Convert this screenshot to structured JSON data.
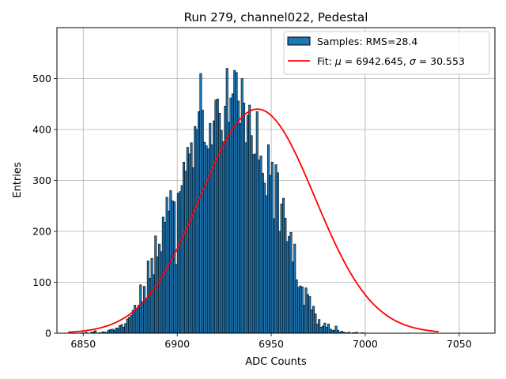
{
  "chart_data": {
    "type": "bar",
    "title": "Run 279, channel022, Pedestal",
    "xlabel": "ADC Counts",
    "ylabel": "Entries",
    "xlim": [
      6836,
      7069
    ],
    "ylim": [
      0,
      600
    ],
    "xticks": [
      6850,
      6900,
      6950,
      7000,
      7050
    ],
    "yticks": [
      0,
      100,
      200,
      300,
      400,
      500
    ],
    "grid": true,
    "legend_position": "top-right",
    "colors": {
      "bars": "#1f77b4",
      "bar_edge": "#000000",
      "fit": "#ff0000",
      "grid": "#b0b0b0"
    },
    "histogram": {
      "name": "Samples: RMS=28.4",
      "bin_start": 6844,
      "bin_width": 1,
      "counts": [
        0,
        0,
        0,
        0,
        0,
        1,
        0,
        2,
        0,
        0,
        2,
        3,
        5,
        0,
        1,
        1,
        3,
        2,
        2,
        6,
        7,
        8,
        6,
        10,
        10,
        15,
        17,
        12,
        19,
        28,
        31,
        35,
        45,
        55,
        48,
        55,
        95,
        62,
        92,
        68,
        142,
        108,
        147,
        115,
        191,
        150,
        175,
        160,
        228,
        218,
        267,
        240,
        280,
        260,
        258,
        135,
        275,
        278,
        290,
        336,
        318,
        365,
        352,
        374,
        325,
        406,
        400,
        435,
        510,
        438,
        375,
        368,
        362,
        412,
        370,
        417,
        458,
        460,
        432,
        398,
        376,
        446,
        520,
        414,
        462,
        470,
        516,
        512,
        456,
        412,
        500,
        452,
        374,
        428,
        448,
        388,
        351,
        352,
        435,
        340,
        348,
        314,
        295,
        270,
        370,
        310,
        336,
        225,
        331,
        315,
        200,
        254,
        265,
        226,
        180,
        190,
        198,
        140,
        175,
        105,
        90,
        93,
        91,
        55,
        89,
        76,
        72,
        46,
        53,
        38,
        18,
        27,
        12,
        14,
        20,
        12,
        18,
        8,
        6,
        6,
        14,
        6,
        2,
        4,
        2,
        1,
        1,
        2,
        0,
        1,
        1,
        2,
        0,
        0,
        1,
        0,
        0,
        0,
        0,
        0,
        0,
        0,
        0,
        0,
        0,
        0,
        0,
        0,
        0,
        0,
        0,
        0,
        0,
        0,
        0,
        0,
        0,
        0,
        0,
        0,
        0,
        0,
        0,
        0,
        0,
        0,
        0,
        0,
        0,
        0,
        0,
        0,
        0,
        0,
        0,
        0,
        0,
        0,
        0,
        0,
        0,
        0,
        0,
        0,
        0,
        0,
        0
      ]
    },
    "fit": {
      "name": "Fit: μ = 6942.645, σ = 30.553",
      "label_prefix": "Fit: ",
      "label_mu": "μ",
      "label_mid": " = 6942.645, ",
      "label_sigma": "σ",
      "label_end": " = 30.553",
      "mu": 6942.645,
      "sigma": 30.553,
      "amplitude": 440,
      "x_range": [
        6842,
        7039
      ]
    }
  }
}
